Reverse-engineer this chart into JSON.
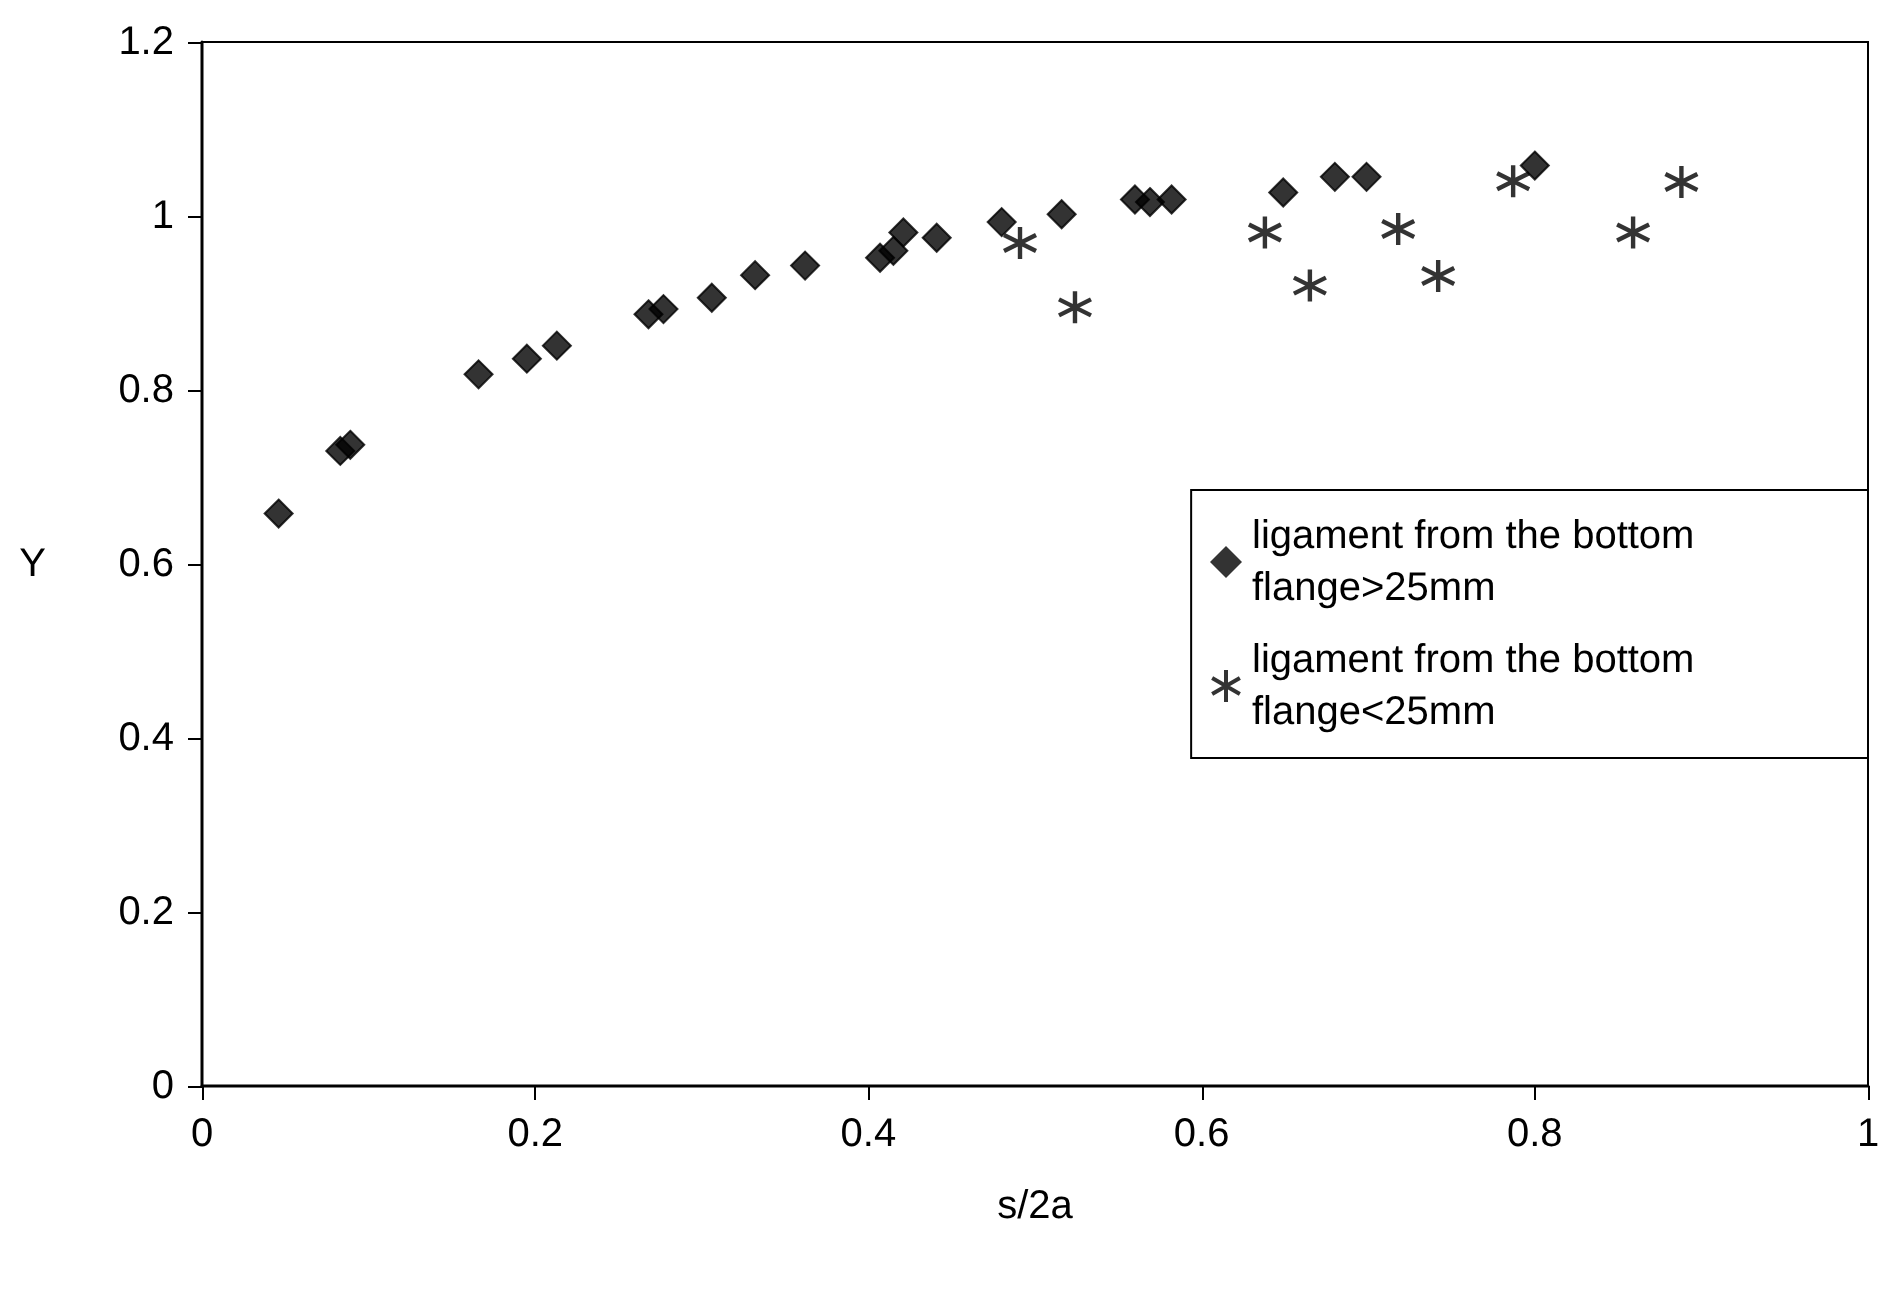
{
  "chart_data": {
    "type": "scatter",
    "xlabel": "s/2a",
    "ylabel": "Y",
    "xlim": [
      0,
      1
    ],
    "xticks": [
      0,
      0.2,
      0.4,
      0.6,
      0.8,
      1
    ],
    "ylim": [
      0,
      1.2
    ],
    "yticks": [
      0,
      0.2,
      0.4,
      0.6,
      0.8,
      1,
      1.2
    ],
    "grid": false,
    "legend": "right",
    "series": [
      {
        "name": "ligament from the bottom flange>25mm",
        "color": "#000000",
        "marker": "diamond",
        "x": [
          0.046,
          0.083,
          0.089,
          0.166,
          0.195,
          0.213,
          0.268,
          0.277,
          0.306,
          0.332,
          0.362,
          0.407,
          0.415,
          0.421,
          0.441,
          0.48,
          0.516,
          0.56,
          0.569,
          0.582,
          0.649,
          0.68,
          0.699,
          0.8
        ],
        "values": [
          0.658,
          0.73,
          0.737,
          0.818,
          0.836,
          0.851,
          0.887,
          0.893,
          0.906,
          0.932,
          0.943,
          0.952,
          0.96,
          0.981,
          0.975,
          0.993,
          1.002,
          1.019,
          1.016,
          1.019,
          1.027,
          1.045,
          1.045,
          1.058
        ]
      },
      {
        "name": "ligament from the bottom flange<25mm",
        "color": "#000000",
        "marker": "cross",
        "x": [
          0.491,
          0.524,
          0.638,
          0.665,
          0.718,
          0.742,
          0.787,
          0.859,
          0.888
        ],
        "values": [
          0.969,
          0.895,
          0.981,
          0.92,
          0.985,
          0.931,
          1.04,
          0.981,
          1.039
        ]
      }
    ]
  }
}
